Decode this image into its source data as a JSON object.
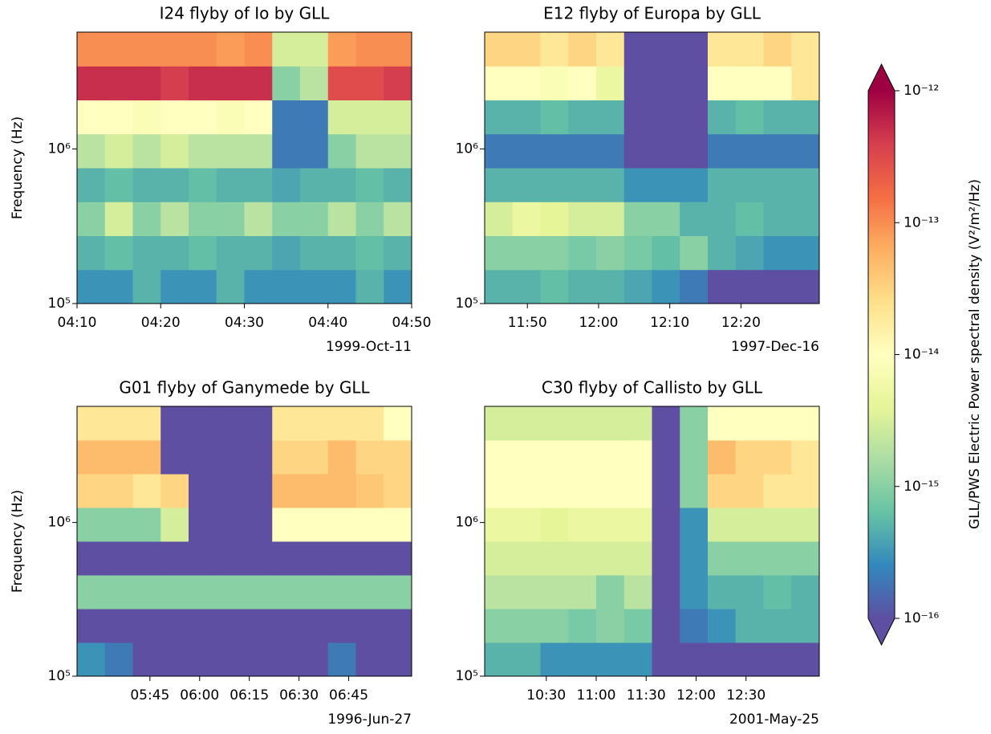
{
  "chart_data": [
    {
      "type": "heatmap",
      "title": "I24 flyby of Io by GLL",
      "ylabel": "Frequency (Hz)",
      "date": "1999-Oct-11",
      "xlim": [
        "04:10",
        "04:50"
      ],
      "xticks": [
        "04:10",
        "04:20",
        "04:30",
        "04:40",
        "04:50"
      ],
      "ylim": [
        100000,
        5700000
      ],
      "yscale": "log",
      "yticks": [
        {
          "value": 100000,
          "label": "10⁵"
        },
        {
          "value": 1000000,
          "label": "10⁶"
        }
      ],
      "colormap": "Spectral_r",
      "z": [
        [
          3e-16,
          3e-16,
          5e-16,
          3e-16,
          3e-16,
          5e-16,
          3e-16,
          3e-16,
          3e-16,
          3e-16,
          5e-16,
          3e-16
        ],
        [
          5e-16,
          6e-16,
          5e-16,
          5e-16,
          6e-16,
          5e-16,
          5e-16,
          4e-16,
          5e-16,
          5e-16,
          6e-16,
          5e-16
        ],
        [
          1e-15,
          3e-15,
          1e-15,
          2e-15,
          1e-15,
          1e-15,
          2e-15,
          1e-15,
          1e-15,
          2e-15,
          1e-15,
          2e-15
        ],
        [
          5e-16,
          6e-16,
          5e-16,
          5e-16,
          6e-16,
          5e-16,
          5e-16,
          4e-16,
          5e-16,
          5e-16,
          6e-16,
          5e-16
        ],
        [
          2e-15,
          3e-15,
          2e-15,
          3e-15,
          2e-15,
          2e-15,
          2e-15,
          2e-16,
          2e-16,
          1e-15,
          2e-15,
          2e-15
        ],
        [
          1e-14,
          1e-14,
          8e-15,
          1e-14,
          1e-14,
          8e-15,
          1e-14,
          2e-16,
          2e-16,
          3e-15,
          3e-15,
          3e-15
        ],
        [
          5e-13,
          5e-13,
          5e-13,
          4e-13,
          5e-13,
          5e-13,
          5e-13,
          1e-15,
          2e-15,
          3e-13,
          3e-13,
          4e-13
        ],
        [
          1e-13,
          1e-13,
          1e-13,
          1e-13,
          1e-13,
          8e-14,
          1e-13,
          3e-15,
          3e-15,
          8e-14,
          1e-13,
          1e-13
        ]
      ]
    },
    {
      "type": "heatmap",
      "title": "E12 flyby of Europa by GLL",
      "date": "1997-Dec-16",
      "xlim": [
        "11:44",
        "12:31"
      ],
      "xticks": [
        "11:50",
        "12:00",
        "12:10",
        "12:20"
      ],
      "ylim": [
        100000,
        5700000
      ],
      "yscale": "log",
      "yticks": [
        {
          "value": 100000,
          "label": "10⁵"
        },
        {
          "value": 1000000,
          "label": "10⁶"
        }
      ],
      "colormap": "Spectral_r",
      "z": [
        [
          5e-16,
          5e-16,
          6e-16,
          5e-16,
          5e-16,
          4e-16,
          3e-16,
          2e-16,
          1e-16,
          1e-16,
          1e-16,
          1e-16
        ],
        [
          1e-15,
          1e-15,
          1e-15,
          8e-16,
          1e-15,
          8e-16,
          6e-16,
          1e-15,
          5e-16,
          4e-16,
          3e-16,
          3e-16
        ],
        [
          3e-15,
          5e-15,
          4e-15,
          3e-15,
          3e-15,
          1e-15,
          1e-15,
          5e-16,
          5e-16,
          6e-16,
          5e-16,
          5e-16
        ],
        [
          5e-16,
          5e-16,
          5e-16,
          5e-16,
          5e-16,
          3e-16,
          3e-16,
          3e-16,
          5e-16,
          5e-16,
          5e-16,
          5e-16
        ],
        [
          2e-16,
          2e-16,
          2e-16,
          2e-16,
          2e-16,
          1e-16,
          1e-16,
          1e-16,
          2e-16,
          2e-16,
          2e-16,
          2e-16
        ],
        [
          5e-16,
          5e-16,
          6e-16,
          5e-16,
          5e-16,
          1e-16,
          1e-16,
          1e-16,
          5e-16,
          6e-16,
          5e-16,
          5e-16
        ],
        [
          1e-14,
          1e-14,
          8e-15,
          1e-14,
          5e-15,
          1e-16,
          1e-16,
          1e-16,
          1e-14,
          1e-14,
          1e-14,
          2e-14
        ],
        [
          3e-14,
          3e-14,
          2e-14,
          3e-14,
          2e-14,
          1e-16,
          1e-16,
          1e-16,
          2e-14,
          2e-14,
          3e-14,
          2e-14
        ]
      ]
    },
    {
      "type": "heatmap",
      "title": "G01 flyby of Ganymede by GLL",
      "ylabel": "Frequency (Hz)",
      "date": "1996-Jun-27",
      "xlim": [
        "05:23",
        "07:04"
      ],
      "xticks": [
        "05:45",
        "06:00",
        "06:15",
        "06:30",
        "06:45"
      ],
      "ylim": [
        100000,
        5700000
      ],
      "yscale": "log",
      "yticks": [
        {
          "value": 100000,
          "label": "10⁵"
        },
        {
          "value": 1000000,
          "label": "10⁶"
        }
      ],
      "colormap": "Spectral_r",
      "z": [
        [
          3e-16,
          2e-16,
          1e-16,
          1e-16,
          1e-16,
          1e-16,
          1e-16,
          1e-16,
          1e-16,
          2e-16,
          1e-16,
          1e-16
        ],
        [
          1e-16,
          1e-16,
          1e-16,
          1e-16,
          1e-16,
          1e-16,
          1e-16,
          1e-16,
          1e-16,
          1e-16,
          1e-16,
          1e-16
        ],
        [
          1e-15,
          1e-15,
          1e-15,
          1e-15,
          1e-15,
          1e-15,
          1e-15,
          1e-15,
          1e-15,
          1e-15,
          1e-15,
          1e-15
        ],
        [
          1e-16,
          1e-16,
          1e-16,
          1e-16,
          1e-16,
          1e-16,
          1e-16,
          1e-16,
          1e-16,
          1e-16,
          1e-16,
          1e-16
        ],
        [
          1e-15,
          1e-15,
          1e-15,
          3e-15,
          1e-16,
          1e-16,
          1e-16,
          1e-14,
          1e-14,
          1e-14,
          1e-14,
          1e-14
        ],
        [
          3e-14,
          3e-14,
          2e-14,
          3e-14,
          1e-16,
          1e-16,
          1e-16,
          5e-14,
          5e-14,
          5e-14,
          4e-14,
          3e-14
        ],
        [
          5e-14,
          5e-14,
          5e-14,
          1e-16,
          1e-16,
          1e-16,
          1e-16,
          3e-14,
          3e-14,
          5e-14,
          3e-14,
          3e-14
        ],
        [
          2e-14,
          2e-14,
          2e-14,
          1e-16,
          1e-16,
          1e-16,
          1e-16,
          2e-14,
          2e-14,
          2e-14,
          2e-14,
          1e-14
        ]
      ]
    },
    {
      "type": "heatmap",
      "title": "C30 flyby of Callisto by GLL",
      "date": "2001-May-25",
      "xlim": [
        "09:53",
        "13:14"
      ],
      "xticks": [
        "10:30",
        "11:00",
        "11:30",
        "12:00",
        "12:30"
      ],
      "ylim": [
        100000,
        5700000
      ],
      "yscale": "log",
      "yticks": [
        {
          "value": 100000,
          "label": "10⁵"
        },
        {
          "value": 1000000,
          "label": "10⁶"
        }
      ],
      "colormap": "Spectral_r",
      "z": [
        [
          5e-16,
          5e-16,
          3e-16,
          3e-16,
          3e-16,
          3e-16,
          1e-16,
          1e-16,
          1e-16,
          1e-16,
          1e-16,
          1e-16
        ],
        [
          1e-15,
          1e-15,
          1e-15,
          8e-16,
          1e-15,
          8e-16,
          1e-16,
          2e-16,
          3e-16,
          5e-16,
          5e-16,
          5e-16
        ],
        [
          2e-15,
          2e-15,
          2e-15,
          2e-15,
          1e-15,
          2e-15,
          1e-16,
          3e-16,
          5e-16,
          5e-16,
          6e-16,
          5e-16
        ],
        [
          3e-15,
          3e-15,
          3e-15,
          3e-15,
          3e-15,
          3e-15,
          1e-16,
          3e-16,
          1e-15,
          1e-15,
          1e-15,
          1e-15
        ],
        [
          5e-15,
          5e-15,
          4e-15,
          5e-15,
          5e-15,
          5e-15,
          1e-16,
          3e-16,
          3e-15,
          3e-15,
          3e-15,
          3e-15
        ],
        [
          1e-14,
          1e-14,
          1e-14,
          1e-14,
          1e-14,
          1e-14,
          1e-16,
          1e-15,
          3e-14,
          3e-14,
          2e-14,
          2e-14
        ],
        [
          1e-14,
          1e-14,
          1e-14,
          1e-14,
          1e-14,
          1e-14,
          1e-16,
          1e-15,
          5e-14,
          3e-14,
          3e-14,
          2e-14
        ],
        [
          3e-15,
          3e-15,
          3e-15,
          3e-15,
          3e-15,
          3e-15,
          1e-16,
          1e-15,
          1e-14,
          1e-14,
          1e-14,
          1e-14
        ]
      ]
    }
  ],
  "colorbar": {
    "label": "GLL/PWS Electric Power spectral density (V²/m²/Hz)",
    "colormap": "Spectral_r",
    "lim": [
      1e-16,
      1e-12
    ],
    "scale": "log",
    "ticks": [
      {
        "value": 1e-16,
        "label": "10⁻¹⁶"
      },
      {
        "value": 1e-15,
        "label": "10⁻¹⁵"
      },
      {
        "value": 1e-14,
        "label": "10⁻¹⁴"
      },
      {
        "value": 1e-13,
        "label": "10⁻¹³"
      },
      {
        "value": 1e-12,
        "label": "10⁻¹²"
      }
    ]
  }
}
